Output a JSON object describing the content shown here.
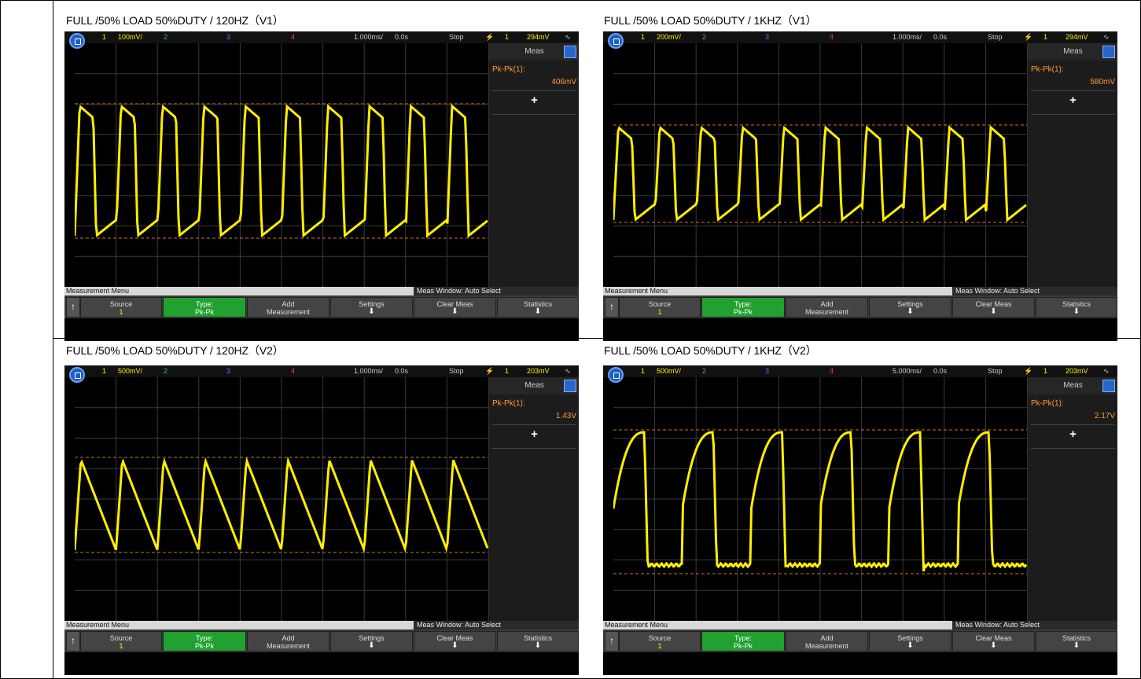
{
  "panels": [
    {
      "title": "FULL /50% LOAD 50%DUTY / 120HZ（V1）",
      "ch1_scale": "100mV/",
      "timebase": "1.000ms/",
      "delay": "0.0s",
      "run_state": "Stop",
      "trigger_ch": "1",
      "trigger_level": "294mV",
      "meas_label": "Pk-Pk(1):",
      "meas_value": "406mV"
    },
    {
      "title": "FULL /50% LOAD 50%DUTY / 1KHZ（V1）",
      "ch1_scale": "200mV/",
      "timebase": "1.000ms/",
      "delay": "0.0s",
      "run_state": "Stop",
      "trigger_ch": "1",
      "trigger_level": "294mV",
      "meas_label": "Pk-Pk(1):",
      "meas_value": "580mV"
    },
    {
      "title": "FULL /50% LOAD 50%DUTY / 120HZ（V2）",
      "ch1_scale": "500mV/",
      "timebase": "1.000ms/",
      "delay": "0.0s",
      "run_state": "Stop",
      "trigger_ch": "1",
      "trigger_level": "203mV",
      "meas_label": "Pk-Pk(1):",
      "meas_value": "1.43V"
    },
    {
      "title": "FULL /50% LOAD 50%DUTY / 1KHZ（V2）",
      "ch1_scale": "500mV/",
      "timebase": "5.000ms/",
      "delay": "0.0s",
      "run_state": "Stop",
      "trigger_ch": "1",
      "trigger_level": "203mV",
      "meas_label": "Pk-Pk(1):",
      "meas_value": "2.17V"
    }
  ],
  "common": {
    "ch1": "1",
    "ch2": "2",
    "ch3": "3",
    "ch4": "4",
    "meas_title": "Meas",
    "menu_title": "Measurement Menu",
    "meas_window": "Meas Window: Auto Select",
    "softkeys": {
      "source": "Source",
      "source_val": "1",
      "type": "Type:",
      "type_val": "Pk-Pk",
      "add": "Add",
      "add_sub": "Measurement",
      "settings": "Settings",
      "clear": "Clear Meas",
      "statistics": "Statistics"
    }
  },
  "colors": {
    "trace": "#ffee00",
    "cursor": "#cc7722",
    "grid": "#3a3a3a",
    "menu_green": "#21a12f"
  }
}
